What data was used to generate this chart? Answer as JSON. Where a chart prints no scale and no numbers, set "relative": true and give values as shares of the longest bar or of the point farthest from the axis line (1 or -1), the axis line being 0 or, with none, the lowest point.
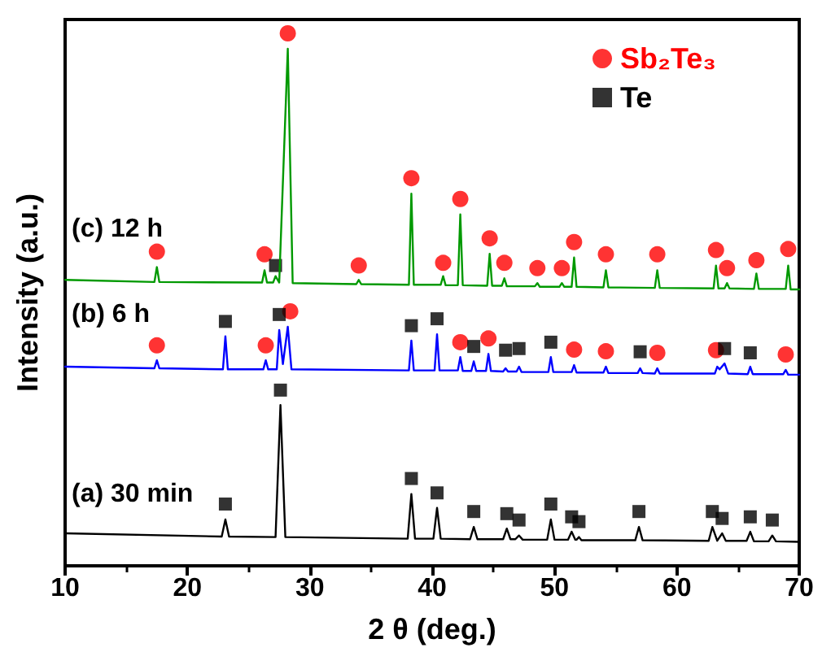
{
  "chart_data": {
    "type": "line",
    "relative": true,
    "xlabel": "2 θ (deg.)",
    "ylabel": "Intensity (a.u.)",
    "xlim": [
      10,
      70
    ],
    "xticks": [
      10,
      20,
      30,
      40,
      50,
      60,
      70
    ],
    "grid": false,
    "legend": "top right",
    "line_style": "solid",
    "marker": "none",
    "series": [
      {
        "color": "#000000",
        "x": [
          10,
          22.8,
          23.1,
          23.4,
          27.2,
          27.6,
          28.0,
          38.0,
          38.3,
          38.6,
          40.1,
          40.4,
          40.7,
          43.1,
          43.4,
          43.7,
          45.8,
          46.1,
          46.4,
          46.8,
          47.1,
          47.4,
          49.4,
          49.7,
          50.0,
          51.1,
          51.4,
          51.7,
          51.8,
          52.0,
          52.2,
          56.6,
          56.9,
          57.2,
          62.6,
          62.9,
          63.3,
          63.7,
          64.0,
          65.7,
          66.0,
          66.3,
          67.5,
          67.8,
          68.1,
          70
        ],
        "values": [
          0.061,
          0.055,
          0.087,
          0.055,
          0.054,
          0.302,
          0.054,
          0.051,
          0.135,
          0.051,
          0.051,
          0.109,
          0.051,
          0.05,
          0.073,
          0.05,
          0.05,
          0.07,
          0.05,
          0.05,
          0.057,
          0.049,
          0.049,
          0.087,
          0.049,
          0.049,
          0.064,
          0.049,
          0.049,
          0.054,
          0.048,
          0.048,
          0.073,
          0.048,
          0.047,
          0.073,
          0.047,
          0.061,
          0.047,
          0.047,
          0.064,
          0.046,
          0.046,
          0.057,
          0.046,
          0.045
        ]
      },
      {
        "color": "#0000ff",
        "x": [
          10,
          17.3,
          17.5,
          17.7,
          22.9,
          23.1,
          23.3,
          26.2,
          26.4,
          26.6,
          27.3,
          27.5,
          27.8,
          28.2,
          28.5,
          38.1,
          38.3,
          38.5,
          40.2,
          40.4,
          40.6,
          42.1,
          42.3,
          42.5,
          43.2,
          43.4,
          43.6,
          44.4,
          44.6,
          44.8,
          45.8,
          46.0,
          46.2,
          46.9,
          47.1,
          47.3,
          49.5,
          49.7,
          49.9,
          51.4,
          51.6,
          51.8,
          54.0,
          54.2,
          54.4,
          56.8,
          57.0,
          57.2,
          58.2,
          58.4,
          58.6,
          63.1,
          63.3,
          63.5,
          63.9,
          64.2,
          65.8,
          66.0,
          66.2,
          68.7,
          68.9,
          69.1,
          70
        ],
        "values": [
          0.374,
          0.371,
          0.386,
          0.371,
          0.369,
          0.431,
          0.369,
          0.369,
          0.386,
          0.369,
          0.369,
          0.443,
          0.379,
          0.449,
          0.369,
          0.367,
          0.423,
          0.367,
          0.367,
          0.435,
          0.367,
          0.367,
          0.392,
          0.366,
          0.366,
          0.384,
          0.366,
          0.366,
          0.398,
          0.366,
          0.365,
          0.371,
          0.365,
          0.365,
          0.374,
          0.364,
          0.364,
          0.392,
          0.364,
          0.364,
          0.377,
          0.363,
          0.363,
          0.374,
          0.362,
          0.362,
          0.371,
          0.362,
          0.361,
          0.371,
          0.361,
          0.361,
          0.374,
          0.369,
          0.38,
          0.361,
          0.36,
          0.374,
          0.36,
          0.36,
          0.368,
          0.359,
          0.359
        ]
      },
      {
        "color": "#009900",
        "x": [
          10,
          17.3,
          17.5,
          17.7,
          26.1,
          26.3,
          26.5,
          27.0,
          27.2,
          27.5,
          28.2,
          28.6,
          33.8,
          34.0,
          34.2,
          38.1,
          38.3,
          38.5,
          40.7,
          40.9,
          41.1,
          42.1,
          42.3,
          42.5,
          44.5,
          44.7,
          44.9,
          45.7,
          45.9,
          46.1,
          48.4,
          48.6,
          48.8,
          50.4,
          50.6,
          50.8,
          51.4,
          51.6,
          51.8,
          54.0,
          54.2,
          54.4,
          58.2,
          58.4,
          58.6,
          63.0,
          63.2,
          63.4,
          63.9,
          64.1,
          64.3,
          66.3,
          66.5,
          66.7,
          68.9,
          69.1,
          69.3,
          70
        ],
        "values": [
          0.537,
          0.533,
          0.561,
          0.533,
          0.532,
          0.555,
          0.532,
          0.532,
          0.544,
          0.532,
          0.971,
          0.531,
          0.529,
          0.537,
          0.529,
          0.528,
          0.699,
          0.528,
          0.528,
          0.544,
          0.527,
          0.527,
          0.66,
          0.527,
          0.526,
          0.586,
          0.526,
          0.526,
          0.54,
          0.525,
          0.525,
          0.531,
          0.524,
          0.524,
          0.531,
          0.524,
          0.524,
          0.579,
          0.524,
          0.523,
          0.555,
          0.523,
          0.522,
          0.555,
          0.522,
          0.521,
          0.564,
          0.521,
          0.521,
          0.531,
          0.521,
          0.52,
          0.549,
          0.52,
          0.52,
          0.564,
          0.519,
          0.519
        ]
      },
      {
        "name": "Sb₂Te₃",
        "type": "scatter",
        "marker": "circle",
        "color": "#ff0000",
        "x": [
          17.5,
          26.3,
          28.2,
          34.0,
          38.3,
          40.9,
          42.3,
          44.7,
          45.9,
          48.6,
          50.6,
          51.6,
          54.2,
          58.4,
          63.2,
          64.1,
          66.5,
          69.1,
          17.5,
          26.4,
          28.4,
          42.3,
          44.6,
          51.6,
          54.2,
          58.4,
          63.2,
          68.9
        ],
        "values": [
          0.59,
          0.585,
          1,
          0.564,
          0.728,
          0.569,
          0.689,
          0.615,
          0.569,
          0.559,
          0.559,
          0.608,
          0.585,
          0.585,
          0.593,
          0.559,
          0.574,
          0.595,
          0.414,
          0.414,
          0.478,
          0.42,
          0.427,
          0.406,
          0.403,
          0.4,
          0.405,
          0.397
        ]
      },
      {
        "name": "Te",
        "type": "scatter",
        "marker": "square",
        "color": "#000000",
        "x": [
          27.2,
          23.1,
          27.5,
          38.3,
          40.4,
          43.4,
          46.0,
          47.1,
          49.7,
          57.0,
          63.9,
          66.0,
          23.1,
          27.6,
          38.3,
          40.4,
          43.4,
          46.1,
          47.1,
          49.7,
          51.4,
          52.0,
          56.9,
          62.9,
          63.7,
          66.0,
          67.8
        ],
        "values": [
          0.564,
          0.459,
          0.472,
          0.451,
          0.464,
          0.412,
          0.405,
          0.408,
          0.42,
          0.402,
          0.408,
          0.4,
          0.116,
          0.33,
          0.164,
          0.137,
          0.102,
          0.098,
          0.086,
          0.116,
          0.092,
          0.083,
          0.102,
          0.102,
          0.089,
          0.092,
          0.086
        ]
      }
    ],
    "annotations": [
      "(a) 30 min",
      "(b) 6 h",
      "(c) 12 h"
    ]
  }
}
